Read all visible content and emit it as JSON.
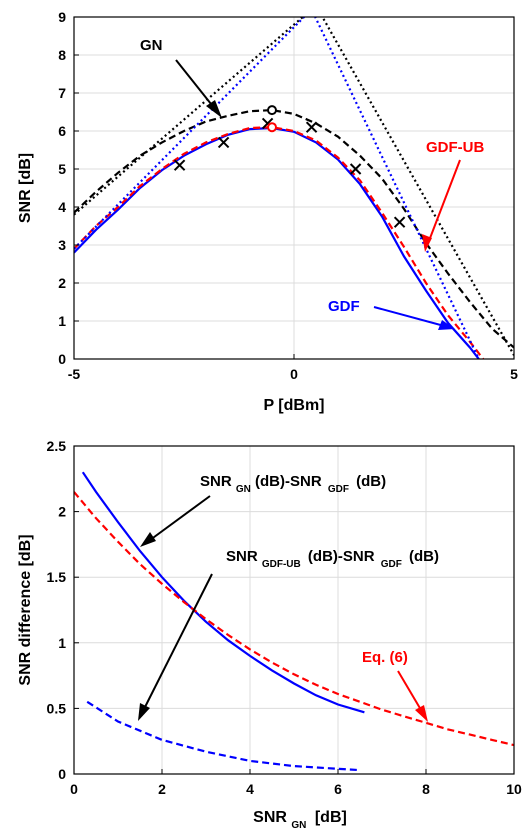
{
  "chart_data": [
    {
      "type": "line",
      "xlabel": "P [dBm]",
      "ylabel": "SNR [dB]",
      "xlim": [
        -5,
        5
      ],
      "ylim": [
        0,
        9
      ],
      "xticks": [
        "-5",
        "0",
        "5"
      ],
      "yticks": [
        "0",
        "1",
        "2",
        "3",
        "4",
        "5",
        "6",
        "7",
        "8",
        "9"
      ],
      "grid": true,
      "annotations": [
        {
          "text": "GN",
          "color": "#000000"
        },
        {
          "text": "GDF-UB",
          "color": "#ff0000"
        },
        {
          "text": "GDF",
          "color": "#0000ff"
        }
      ],
      "series": [
        {
          "name": "GDF",
          "color": "#0000ff",
          "style": "solid",
          "x": [
            -5,
            -4.5,
            -4,
            -3.5,
            -3,
            -2.5,
            -2,
            -1.5,
            -1,
            -0.5,
            0,
            0.5,
            1,
            1.5,
            2,
            2.5,
            3,
            3.5,
            4,
            4.2
          ],
          "y": [
            2.8,
            3.4,
            3.93,
            4.5,
            4.97,
            5.35,
            5.65,
            5.9,
            6.05,
            6.08,
            5.98,
            5.7,
            5.25,
            4.6,
            3.75,
            2.7,
            1.8,
            0.95,
            0.3,
            0.0
          ]
        },
        {
          "name": "GDF-UB",
          "color": "#ff0000",
          "style": "dashed",
          "x": [
            -5,
            -4.5,
            -4,
            -3.5,
            -3,
            -2.5,
            -2,
            -1.5,
            -1,
            -0.5,
            0,
            0.5,
            1,
            1.5,
            2,
            2.5,
            3,
            3.5,
            4,
            4.3
          ],
          "y": [
            2.9,
            3.5,
            4.0,
            4.55,
            5.0,
            5.4,
            5.7,
            5.92,
            6.08,
            6.1,
            6.0,
            5.75,
            5.3,
            4.7,
            3.85,
            2.95,
            2.0,
            1.15,
            0.45,
            0.0
          ]
        },
        {
          "name": "GN",
          "color": "#000000",
          "style": "dashed",
          "x": [
            -5,
            -4.5,
            -4,
            -3.5,
            -3,
            -2.5,
            -2,
            -1.5,
            -1,
            -0.5,
            0,
            0.5,
            1,
            1.5,
            2,
            2.5,
            3,
            3.5,
            4,
            4.5,
            5
          ],
          "y": [
            3.85,
            4.4,
            4.9,
            5.35,
            5.7,
            6.0,
            6.25,
            6.4,
            6.52,
            6.55,
            6.45,
            6.2,
            5.85,
            5.35,
            4.75,
            3.95,
            3.05,
            2.25,
            1.5,
            0.8,
            0.3
          ]
        },
        {
          "name": "GN-ub",
          "color": "#000000",
          "style": "dotted",
          "x": [
            -5,
            0.5,
            5
          ],
          "y": [
            3.8,
            9.3,
            0.1
          ]
        },
        {
          "name": "GDF-ub",
          "color": "#0000ff",
          "style": "dotted",
          "x": [
            -5,
            0.4,
            4.2
          ],
          "y": [
            2.9,
            9.2,
            0.0
          ]
        }
      ],
      "markers": [
        {
          "symbol": "x",
          "color": "#000000",
          "x": [
            -2.6,
            -1.6,
            -0.6,
            0.4,
            1.4,
            2.4
          ],
          "y": [
            5.1,
            5.7,
            6.2,
            6.1,
            5.0,
            3.6
          ]
        },
        {
          "symbol": "o",
          "color": "#000000",
          "x": [
            -0.5
          ],
          "y": [
            6.55
          ]
        },
        {
          "symbol": "o",
          "color": "#ff0000",
          "x": [
            -0.5
          ],
          "y": [
            6.1
          ]
        }
      ]
    },
    {
      "type": "line",
      "xlabel": "SNR",
      "xlabel_sub": "GN",
      "xlabel_unit": "[dB]",
      "ylabel": "SNR difference [dB]",
      "xlim": [
        0,
        10
      ],
      "ylim": [
        0,
        2.5
      ],
      "xticks": [
        "0",
        "2",
        "4",
        "6",
        "8",
        "10"
      ],
      "yticks": [
        "0",
        "0.5",
        "1",
        "1.5",
        "2",
        "2.5"
      ],
      "grid": true,
      "annotations": [
        {
          "text": "SNR",
          "sub": "GN",
          "mid": "(dB)-SNR",
          "sub2": "GDF",
          "tail": "(dB)",
          "color": "#000000"
        },
        {
          "text": "SNR",
          "sub": "GDF-UB",
          "mid": "(dB)-SNR",
          "sub2": "GDF",
          "tail": "(dB)",
          "color": "#000000"
        },
        {
          "text": "Eq. (6)",
          "color": "#ff0000"
        }
      ],
      "series": [
        {
          "name": "SNR_GN(dB)-SNR_GDF(dB)",
          "color": "#0000ff",
          "style": "solid",
          "x": [
            0.2,
            0.5,
            1,
            1.5,
            2,
            2.5,
            3,
            3.5,
            4,
            4.5,
            5,
            5.5,
            6,
            6.6
          ],
          "y": [
            2.3,
            2.15,
            1.92,
            1.7,
            1.5,
            1.32,
            1.16,
            1.02,
            0.9,
            0.79,
            0.69,
            0.6,
            0.53,
            0.47
          ]
        },
        {
          "name": "SNR_GDF-UB(dB)-SNR_GDF(dB)",
          "color": "#0000ff",
          "style": "dashed",
          "x": [
            0.3,
            1,
            2,
            3,
            4,
            5,
            6,
            6.5
          ],
          "y": [
            0.55,
            0.4,
            0.26,
            0.17,
            0.1,
            0.06,
            0.04,
            0.03
          ]
        },
        {
          "name": "Eq. (6)",
          "color": "#ff0000",
          "style": "dashed",
          "x": [
            0,
            0.5,
            1,
            1.5,
            2,
            2.5,
            3,
            3.5,
            4,
            4.5,
            5,
            5.5,
            6,
            6.5,
            7,
            7.5,
            8,
            8.5,
            9,
            9.5,
            10
          ],
          "y": [
            2.15,
            1.95,
            1.77,
            1.6,
            1.45,
            1.31,
            1.18,
            1.06,
            0.95,
            0.85,
            0.76,
            0.68,
            0.61,
            0.55,
            0.49,
            0.44,
            0.39,
            0.34,
            0.3,
            0.26,
            0.22
          ]
        }
      ]
    }
  ]
}
